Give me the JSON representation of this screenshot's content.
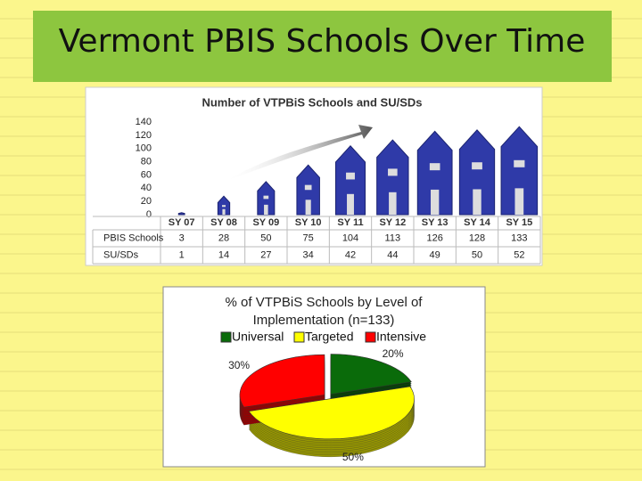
{
  "title": "Vermont PBIS Schools Over Time",
  "chart_data": [
    {
      "type": "bar",
      "title": "Number of VTPBiS Schools and SU/SDs",
      "categories": [
        "SY 07",
        "SY 08",
        "SY 09",
        "SY 10",
        "SY 11",
        "SY 12",
        "SY 13",
        "SY 14",
        "SY 15"
      ],
      "series": [
        {
          "name": "PBIS Schools",
          "color": "#2f3aa8",
          "values": [
            3,
            28,
            50,
            75,
            104,
            113,
            126,
            128,
            133
          ]
        },
        {
          "name": "SU/SDs",
          "values": [
            1,
            14,
            27,
            34,
            42,
            44,
            49,
            50,
            52
          ]
        }
      ],
      "ylim": [
        0,
        140
      ],
      "yticks": [
        0,
        20,
        40,
        60,
        80,
        100,
        120,
        140
      ]
    },
    {
      "type": "pie",
      "title": "% of VTPBiS Schools by Level of Implementation (n=133)",
      "categories": [
        "Universal",
        "Targeted",
        "Intensive"
      ],
      "values": [
        20,
        50,
        30
      ],
      "value_labels": [
        "20%",
        "50%",
        "30%"
      ],
      "colors": [
        "#0a6b0a",
        "#ffff00",
        "#ff0000"
      ]
    }
  ]
}
